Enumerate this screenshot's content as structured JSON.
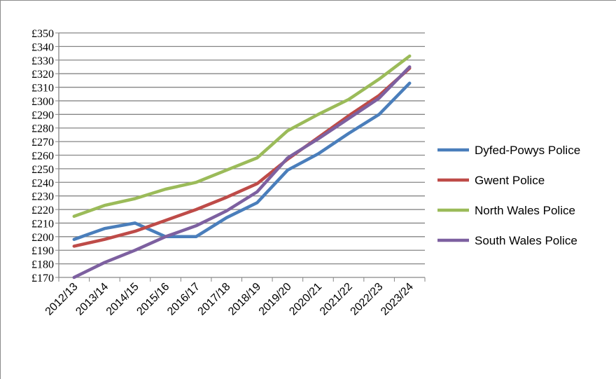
{
  "chart_data": {
    "type": "line",
    "title": "",
    "xlabel": "",
    "ylabel": "",
    "categories": [
      "2012/13",
      "2013/14",
      "2014/15",
      "2015/16",
      "2016/17",
      "2017/18",
      "2018/19",
      "2019/20",
      "2020/21",
      "2021/22",
      "2022/23",
      "2023/24"
    ],
    "y_ticks": [
      "£170",
      "£180",
      "£190",
      "£200",
      "£210",
      "£220",
      "£230",
      "£240",
      "£250",
      "£260",
      "£270",
      "£280",
      "£290",
      "£300",
      "£310",
      "£320",
      "£330",
      "£340",
      "£350"
    ],
    "ylim": [
      170,
      350
    ],
    "y_step": 10,
    "grid": true,
    "legend_position": "right",
    "series": [
      {
        "name": "Dyfed-Powys Police",
        "color": "#4a7ebb",
        "values": [
          198,
          206,
          210,
          200,
          200,
          214,
          225,
          249,
          261,
          276,
          290,
          313
        ]
      },
      {
        "name": "Gwent Police",
        "color": "#be4b48",
        "values": [
          193,
          198,
          204,
          212,
          220,
          229,
          239,
          257,
          273,
          289,
          304,
          324
        ]
      },
      {
        "name": "North Wales Police",
        "color": "#9bbb59",
        "values": [
          215,
          223,
          228,
          235,
          240,
          249,
          258,
          278,
          290,
          301,
          316,
          333
        ]
      },
      {
        "name": "South Wales Police",
        "color": "#7d60a0",
        "values": [
          170,
          181,
          190,
          200,
          208,
          219,
          233,
          258,
          272,
          287,
          302,
          325
        ]
      }
    ]
  }
}
